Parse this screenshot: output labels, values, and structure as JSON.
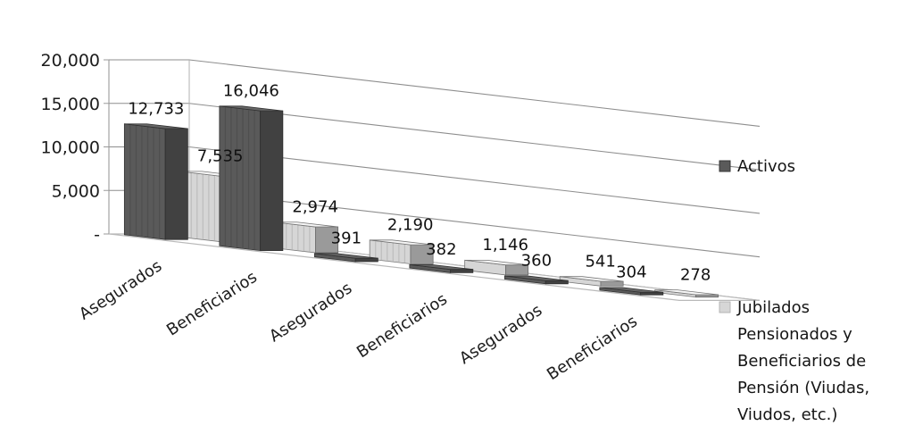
{
  "chart_data": {
    "type": "bar",
    "y_ticks": [
      "20,000",
      "15,000",
      "10,000",
      "5,000",
      "-"
    ],
    "ylim": [
      0,
      20000
    ],
    "categories": [
      "Asegurados",
      "Beneficiarios",
      "Asegurados",
      "Beneficiarios",
      "Asegurados",
      "Beneficiarios"
    ],
    "series": [
      {
        "name": "Activos",
        "values": [
          12733,
          16046,
          391,
          382,
          360,
          304
        ],
        "labels": [
          "12,733",
          "16,046",
          "391",
          "382",
          "360",
          "304"
        ],
        "color": "#5a5a5a"
      },
      {
        "name": "Jubilados Pensionados y Beneficiarios de Pensión (Viudas, Viudos, etc.)",
        "legend_lines": [
          "Jubilados",
          "Pensionados y",
          "Beneficiarios de",
          "Pensión (Viudas,",
          "Viudos, etc.)"
        ],
        "values": [
          7535,
          2974,
          2190,
          1146,
          541,
          278
        ],
        "labels": [
          "7,535",
          "2,974",
          "2,190",
          "1,146",
          "541",
          "278"
        ],
        "color": "#d6d6d6"
      }
    ],
    "grid": true,
    "legend_position": "right"
  }
}
